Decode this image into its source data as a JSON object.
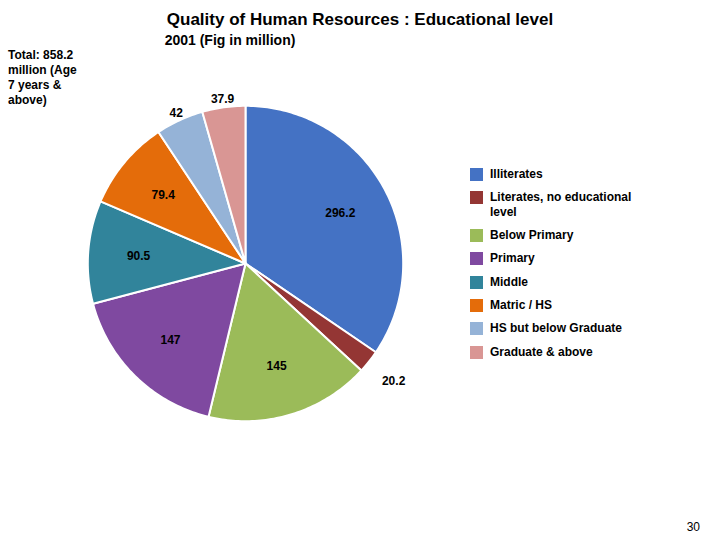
{
  "chart_data": {
    "type": "pie",
    "title": "Quality of Human Resources : Educational level",
    "subtitle": "2001    (Fig in million)",
    "annotations": [
      "Total: 858.2\nmillion (Age\n7 years &\nabove)",
      "30"
    ],
    "categories": [
      "Illiterates",
      "Literates, no educational\nlevel",
      "Below Primary",
      "Primary",
      "Middle",
      "Matric / HS",
      "HS but below Graduate",
      "Graduate & above"
    ],
    "values": [
      296.2,
      20.2,
      145,
      147,
      90.5,
      79.4,
      42,
      37.9
    ],
    "colors": [
      "#4472c4",
      "#943634",
      "#9bbb59",
      "#7f49a0",
      "#31849b",
      "#e46c0a",
      "#95b3d7",
      "#d99694"
    ],
    "data_labels": true,
    "legend": "right"
  }
}
